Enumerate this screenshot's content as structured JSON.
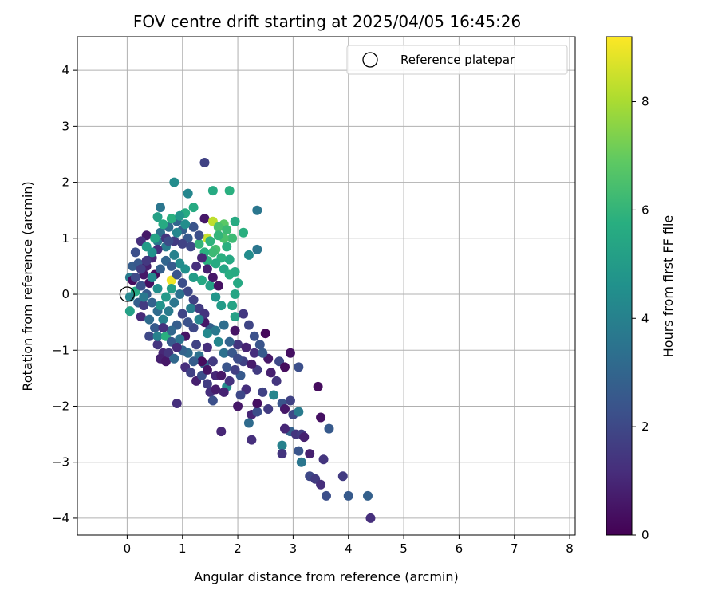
{
  "chart_data": {
    "type": "scatter",
    "title": "FOV centre drift starting at 2025/04/05 16:45:26",
    "xlabel": "Angular distance from reference (arcmin)",
    "ylabel": "Rotation from reference (arcmin)",
    "xlim": [
      -0.9,
      8.1
    ],
    "ylim": [
      -4.3,
      4.6
    ],
    "xticks": [
      0,
      1,
      2,
      3,
      4,
      5,
      6,
      7,
      8
    ],
    "yticks": [
      -4,
      -3,
      -2,
      -1,
      0,
      1,
      2,
      3,
      4
    ],
    "xtick_labels": [
      "0",
      "1",
      "2",
      "3",
      "4",
      "5",
      "6",
      "7",
      "8"
    ],
    "ytick_labels": [
      "−4",
      "−3",
      "−2",
      "−1",
      "0",
      "1",
      "2",
      "3",
      "4"
    ],
    "grid": true,
    "legend": {
      "label": "Reference platepar",
      "placement": "top-right"
    },
    "reference_point": {
      "x": 0,
      "y": 0
    },
    "colorbar": {
      "label": "Hours from first FF file",
      "range": [
        0,
        9.2
      ],
      "ticks": [
        0,
        2,
        4,
        6,
        8
      ],
      "tick_labels": [
        "0",
        "2",
        "4",
        "6",
        "8"
      ],
      "colormap": "viridis"
    },
    "points": [
      [
        2.35,
        1.5,
        3.6
      ],
      [
        1.95,
        1.3,
        5.6
      ],
      [
        1.85,
        1.85,
        5.8
      ],
      [
        1.55,
        1.85,
        5.6
      ],
      [
        1.4,
        2.35,
        1.8
      ],
      [
        0.85,
        2.0,
        4.4
      ],
      [
        1.1,
        1.8,
        4.2
      ],
      [
        0.6,
        1.55,
        3.6
      ],
      [
        1.2,
        1.55,
        5.6
      ],
      [
        0.55,
        1.38,
        5.2
      ],
      [
        1.05,
        1.45,
        5.6
      ],
      [
        1.4,
        1.35,
        0.6
      ],
      [
        1.9,
        1.0,
        6.2
      ],
      [
        1.75,
        1.25,
        6.8
      ],
      [
        2.1,
        1.1,
        5.8
      ],
      [
        1.55,
        1.3,
        8.3
      ],
      [
        1.65,
        1.2,
        6.5
      ],
      [
        1.45,
        1.0,
        8.4
      ],
      [
        1.8,
        0.85,
        5.8
      ],
      [
        2.2,
        0.7,
        4.4
      ],
      [
        2.35,
        0.8,
        3.6
      ],
      [
        1.85,
        0.62,
        5.5
      ],
      [
        0.8,
        0.25,
        9.0
      ],
      [
        0.35,
        1.05,
        0.6
      ],
      [
        0.25,
        0.95,
        1.2
      ],
      [
        0.15,
        0.75,
        2.2
      ],
      [
        0.1,
        0.5,
        2.7
      ],
      [
        0.2,
        0.55,
        2.5
      ],
      [
        0.05,
        0.3,
        3.8
      ],
      [
        0.1,
        0.25,
        0.3
      ],
      [
        0.15,
        0.05,
        5.5
      ],
      [
        0.05,
        -0.05,
        4.2
      ],
      [
        0.05,
        -0.3,
        5.2
      ],
      [
        0.2,
        -0.15,
        2.8
      ],
      [
        0.3,
        -0.2,
        1.6
      ],
      [
        0.25,
        -0.4,
        1.1
      ],
      [
        0.4,
        -0.45,
        3.2
      ],
      [
        0.5,
        -0.6,
        2.6
      ],
      [
        0.4,
        -0.75,
        2.0
      ],
      [
        0.55,
        -0.9,
        1.4
      ],
      [
        0.65,
        -1.05,
        1.0
      ],
      [
        0.6,
        -1.15,
        0.8
      ],
      [
        0.7,
        -1.2,
        0.6
      ],
      [
        0.75,
        -1.05,
        1.4
      ],
      [
        0.55,
        -0.75,
        4.0
      ],
      [
        0.7,
        -0.75,
        5.8
      ],
      [
        0.8,
        -0.85,
        2.6
      ],
      [
        1.05,
        -0.75,
        0.5
      ],
      [
        1.1,
        -1.05,
        3.2
      ],
      [
        1.05,
        -1.3,
        1.2
      ],
      [
        1.15,
        -1.4,
        1.8
      ],
      [
        1.25,
        -1.55,
        0.8
      ],
      [
        1.35,
        -1.45,
        2.2
      ],
      [
        1.45,
        -1.6,
        1.6
      ],
      [
        1.5,
        -1.75,
        1.2
      ],
      [
        1.55,
        -1.9,
        2.2
      ],
      [
        1.4,
        -1.25,
        3.0
      ],
      [
        1.55,
        -1.2,
        1.6
      ],
      [
        1.6,
        -1.45,
        1.0
      ],
      [
        1.7,
        -1.45,
        0.6
      ],
      [
        1.8,
        -1.3,
        2.4
      ],
      [
        1.8,
        -1.65,
        4.4
      ],
      [
        1.75,
        -1.05,
        3.4
      ],
      [
        1.65,
        -0.85,
        4.2
      ],
      [
        1.5,
        -0.6,
        2.8
      ],
      [
        1.4,
        -0.5,
        0.6
      ],
      [
        1.2,
        -0.6,
        2.0
      ],
      [
        1.25,
        -0.9,
        1.8
      ],
      [
        1.3,
        -1.1,
        3.4
      ],
      [
        1.45,
        -0.95,
        1.2
      ],
      [
        1.95,
        -0.65,
        0.5
      ],
      [
        2.0,
        -0.9,
        1.4
      ],
      [
        2.1,
        -1.2,
        1.8
      ],
      [
        2.05,
        -1.45,
        2.6
      ],
      [
        2.15,
        -1.7,
        1.2
      ],
      [
        2.0,
        -2.0,
        0.6
      ],
      [
        2.05,
        -1.8,
        2.0
      ],
      [
        2.25,
        -2.15,
        1.0
      ],
      [
        2.35,
        -2.1,
        2.2
      ],
      [
        2.2,
        -2.3,
        3.2
      ],
      [
        2.25,
        -2.6,
        1.2
      ],
      [
        2.35,
        -1.95,
        0.4
      ],
      [
        2.45,
        -1.75,
        1.8
      ],
      [
        2.55,
        -2.05,
        1.6
      ],
      [
        2.65,
        -1.8,
        4.2
      ],
      [
        2.8,
        -1.95,
        2.4
      ],
      [
        2.85,
        -2.05,
        0.6
      ],
      [
        2.95,
        -1.9,
        1.8
      ],
      [
        3.0,
        -2.15,
        2.0
      ],
      [
        3.1,
        -2.1,
        3.8
      ],
      [
        2.95,
        -2.45,
        2.8
      ],
      [
        2.85,
        -2.4,
        1.0
      ],
      [
        3.05,
        -2.5,
        1.4
      ],
      [
        3.15,
        -2.5,
        1.6
      ],
      [
        3.2,
        -2.55,
        0.8
      ],
      [
        2.8,
        -2.7,
        4.0
      ],
      [
        2.8,
        -2.85,
        1.4
      ],
      [
        3.1,
        -2.8,
        2.4
      ],
      [
        3.15,
        -3.0,
        3.6
      ],
      [
        3.3,
        -2.85,
        0.8
      ],
      [
        3.3,
        -3.25,
        2.0
      ],
      [
        3.4,
        -3.3,
        1.6
      ],
      [
        3.5,
        -3.4,
        1.2
      ],
      [
        3.55,
        -2.95,
        1.4
      ],
      [
        3.6,
        -3.6,
        2.2
      ],
      [
        3.65,
        -2.4,
        2.6
      ],
      [
        3.5,
        -2.2,
        0.4
      ],
      [
        3.45,
        -1.65,
        0.3
      ],
      [
        4.0,
        -3.6,
        2.6
      ],
      [
        3.9,
        -3.25,
        1.6
      ],
      [
        4.35,
        -3.6,
        2.8
      ],
      [
        4.4,
        -4.0,
        1.2
      ],
      [
        2.5,
        -0.7,
        0.2
      ],
      [
        2.4,
        -0.9,
        2.4
      ],
      [
        2.3,
        -1.05,
        1.2
      ],
      [
        2.35,
        -1.35,
        1.6
      ],
      [
        2.6,
        -1.4,
        0.8
      ],
      [
        2.7,
        -1.55,
        1.4
      ],
      [
        2.75,
        -1.2,
        2.0
      ],
      [
        2.85,
        -1.3,
        0.3
      ],
      [
        2.95,
        -1.05,
        0.4
      ],
      [
        3.1,
        -1.3,
        2.2
      ],
      [
        2.55,
        -1.15,
        0.6
      ],
      [
        2.45,
        -1.05,
        2.6
      ],
      [
        0.9,
        -1.95,
        1.2
      ],
      [
        1.7,
        -2.45,
        1.0
      ],
      [
        1.6,
        0.8,
        6.4
      ],
      [
        1.7,
        0.65,
        5.8
      ],
      [
        1.75,
        1.0,
        6.5
      ],
      [
        1.8,
        1.15,
        6.2
      ],
      [
        1.65,
        1.05,
        6.0
      ],
      [
        1.5,
        0.95,
        5.9
      ],
      [
        1.55,
        0.75,
        6.2
      ],
      [
        1.6,
        0.55,
        5.6
      ],
      [
        1.4,
        0.75,
        5.8
      ],
      [
        1.3,
        0.9,
        6.0
      ],
      [
        1.45,
        0.6,
        5.8
      ],
      [
        1.75,
        0.45,
        5.4
      ],
      [
        1.85,
        0.35,
        5.7
      ],
      [
        1.95,
        0.4,
        5.6
      ],
      [
        2.0,
        0.2,
        5.5
      ],
      [
        1.95,
        0.0,
        5.4
      ],
      [
        1.9,
        -0.2,
        5.3
      ],
      [
        1.95,
        -0.4,
        5.2
      ],
      [
        1.7,
        -0.2,
        5.0
      ],
      [
        1.6,
        -0.05,
        4.8
      ],
      [
        1.5,
        0.15,
        5.2
      ],
      [
        1.35,
        0.25,
        5.5
      ],
      [
        1.2,
        0.3,
        5.0
      ],
      [
        1.05,
        0.45,
        4.6
      ],
      [
        0.95,
        0.55,
        4.4
      ],
      [
        0.85,
        0.7,
        4.0
      ],
      [
        0.7,
        0.85,
        3.8
      ],
      [
        0.55,
        0.95,
        3.6
      ],
      [
        0.6,
        1.1,
        3.4
      ],
      [
        0.75,
        1.2,
        3.2
      ],
      [
        0.9,
        1.3,
        3.0
      ],
      [
        1.0,
        1.15,
        2.8
      ],
      [
        1.1,
        1.0,
        2.6
      ],
      [
        1.2,
        1.2,
        2.4
      ],
      [
        1.3,
        1.05,
        2.2
      ],
      [
        1.15,
        0.85,
        2.0
      ],
      [
        1.0,
        0.9,
        1.8
      ],
      [
        0.85,
        0.95,
        1.6
      ],
      [
        0.7,
        1.0,
        1.4
      ],
      [
        0.55,
        0.8,
        1.2
      ],
      [
        0.45,
        0.65,
        1.0
      ],
      [
        0.35,
        0.5,
        0.8
      ],
      [
        0.3,
        0.35,
        0.6
      ],
      [
        0.4,
        0.2,
        0.4
      ],
      [
        0.5,
        0.35,
        0.2
      ],
      [
        0.6,
        0.45,
        2.8
      ],
      [
        0.7,
        0.6,
        3.0
      ],
      [
        0.8,
        0.5,
        2.6
      ],
      [
        0.9,
        0.35,
        2.4
      ],
      [
        1.0,
        0.2,
        2.2
      ],
      [
        1.1,
        0.05,
        2.0
      ],
      [
        1.2,
        -0.1,
        1.8
      ],
      [
        1.3,
        -0.25,
        1.6
      ],
      [
        1.4,
        -0.35,
        1.4
      ],
      [
        1.25,
        0.5,
        1.2
      ],
      [
        1.35,
        0.65,
        1.0
      ],
      [
        1.45,
        0.45,
        0.8
      ],
      [
        1.55,
        0.3,
        0.6
      ],
      [
        1.65,
        0.15,
        0.4
      ],
      [
        0.95,
        0.0,
        3.4
      ],
      [
        0.85,
        -0.15,
        3.6
      ],
      [
        0.75,
        -0.3,
        3.8
      ],
      [
        0.65,
        -0.45,
        4.0
      ],
      [
        0.55,
        -0.3,
        3.2
      ],
      [
        0.45,
        -0.15,
        2.9
      ],
      [
        0.35,
        0.0,
        2.6
      ],
      [
        0.25,
        0.15,
        2.3
      ],
      [
        0.15,
        0.3,
        2.0
      ],
      [
        0.25,
        0.45,
        1.7
      ],
      [
        0.35,
        0.6,
        1.5
      ],
      [
        0.45,
        0.75,
        4.6
      ],
      [
        0.35,
        0.85,
        5.0
      ],
      [
        0.5,
        1.0,
        5.3
      ],
      [
        0.65,
        1.25,
        5.6
      ],
      [
        0.8,
        1.35,
        5.8
      ],
      [
        0.95,
        1.4,
        4.8
      ],
      [
        1.05,
        1.25,
        4.5
      ],
      [
        0.9,
        1.1,
        4.2
      ],
      [
        0.75,
        0.95,
        2.1
      ],
      [
        1.0,
        -0.35,
        1.9
      ],
      [
        1.1,
        -0.5,
        2.3
      ],
      [
        0.9,
        -0.55,
        2.7
      ],
      [
        0.8,
        -0.65,
        3.1
      ],
      [
        0.95,
        -0.8,
        3.5
      ],
      [
        1.15,
        -0.25,
        3.9
      ],
      [
        1.3,
        -0.45,
        4.1
      ],
      [
        1.45,
        -0.7,
        4.3
      ],
      [
        1.6,
        -0.65,
        3.7
      ],
      [
        1.75,
        -0.55,
        3.3
      ],
      [
        1.85,
        -0.85,
        2.9
      ],
      [
        1.9,
        -1.05,
        2.5
      ],
      [
        2.0,
        -1.15,
        2.1
      ],
      [
        1.95,
        -1.35,
        1.7
      ],
      [
        1.85,
        -1.55,
        1.3
      ],
      [
        1.75,
        -1.75,
        0.9
      ],
      [
        1.6,
        -1.7,
        0.7
      ],
      [
        1.45,
        -1.35,
        0.5
      ],
      [
        1.35,
        -1.2,
        0.3
      ],
      [
        1.2,
        -1.2,
        2.7
      ],
      [
        1.0,
        -1.0,
        2.9
      ],
      [
        0.85,
        -1.15,
        3.1
      ],
      [
        0.9,
        -0.95,
        1.1
      ],
      [
        0.65,
        -0.6,
        1.3
      ],
      [
        0.6,
        -0.2,
        4.7
      ],
      [
        0.7,
        -0.05,
        4.9
      ],
      [
        0.8,
        0.1,
        5.1
      ],
      [
        0.55,
        0.1,
        4.5
      ],
      [
        0.45,
        0.3,
        4.3
      ],
      [
        0.3,
        -0.05,
        3.7
      ],
      [
        2.1,
        -0.35,
        1.5
      ],
      [
        2.2,
        -0.55,
        1.9
      ],
      [
        2.3,
        -0.75,
        2.3
      ],
      [
        2.15,
        -0.95,
        0.9
      ],
      [
        2.25,
        -1.25,
        0.7
      ]
    ]
  }
}
